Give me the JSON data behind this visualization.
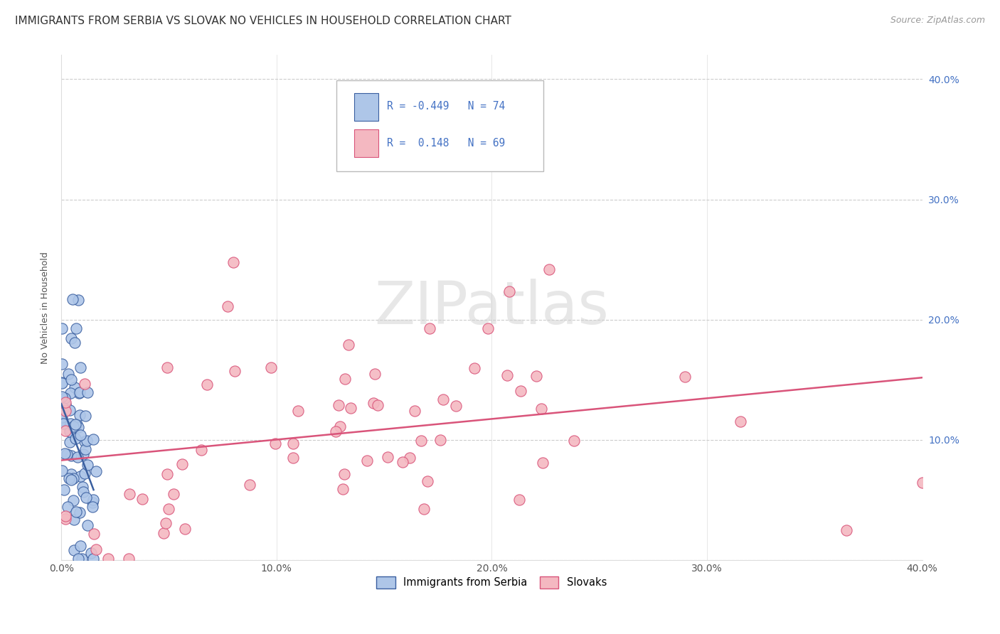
{
  "title": "IMMIGRANTS FROM SERBIA VS SLOVAK NO VEHICLES IN HOUSEHOLD CORRELATION CHART",
  "source": "Source: ZipAtlas.com",
  "ylabel": "No Vehicles in Household",
  "color_serbia": "#aec6e8",
  "color_slovak": "#f4b8c1",
  "color_serbia_line": "#3a5fa0",
  "color_slovak_line": "#d9547a",
  "color_right_ticks": "#4472c4",
  "watermark_text": "ZIPatlas",
  "xlim": [
    0.0,
    0.4
  ],
  "ylim": [
    0.0,
    0.42
  ],
  "background_color": "#ffffff",
  "grid_color": "#cccccc",
  "title_fontsize": 11,
  "axis_label_fontsize": 9,
  "tick_fontsize": 10,
  "source_fontsize": 9,
  "legend_r1": "R = -0.449",
  "legend_n1": "N = 74",
  "legend_r2": "R =  0.148",
  "legend_n2": "N = 69"
}
